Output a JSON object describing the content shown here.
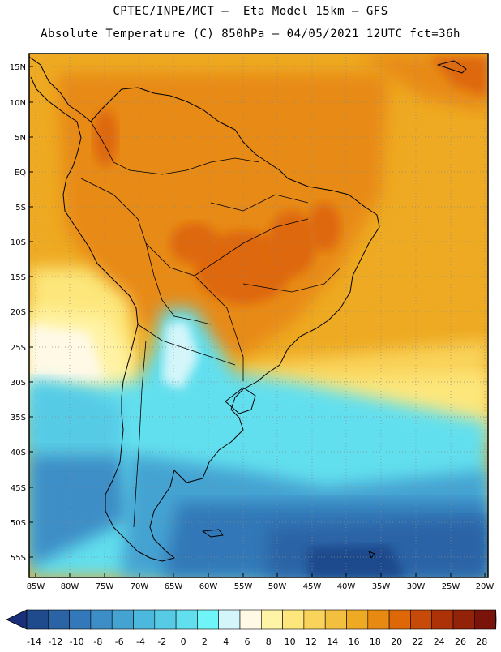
{
  "header": {
    "line1": "CPTEC/INPE/MCT –  Eta Model 15km – GFS",
    "line2": "Absolute Temperature (C) 850hPa – 04/05/2021 12UTC fct=36h"
  },
  "axes": {
    "lat_labels": [
      "15N",
      "10N",
      "5N",
      "EQ",
      "5S",
      "10S",
      "15S",
      "20S",
      "25S",
      "30S",
      "35S",
      "40S",
      "45S",
      "50S",
      "55S"
    ],
    "lon_labels": [
      "85W",
      "80W",
      "75W",
      "70W",
      "65W",
      "60W",
      "55W",
      "50W",
      "45W",
      "40W",
      "35W",
      "30W",
      "25W",
      "20W"
    ]
  },
  "colorbar": {
    "labels": [
      "-14",
      "-12",
      "-10",
      "-8",
      "-6",
      "-4",
      "-2",
      "0",
      "2",
      "4",
      "6",
      "8",
      "10",
      "12",
      "14",
      "16",
      "18",
      "20",
      "22",
      "24",
      "26",
      "28"
    ],
    "colors": [
      "#1f4a8c",
      "#2a63a6",
      "#3378b8",
      "#3d8ec6",
      "#45a3d2",
      "#4db8dd",
      "#57cbe6",
      "#62dfee",
      "#6ff5f7",
      "#d4f6fa",
      "#fff9e6",
      "#fff3a6",
      "#fde77c",
      "#f9d35a",
      "#f2bf3f",
      "#eeaa22",
      "#e88a12",
      "#de6808",
      "#c84a08",
      "#ae3208",
      "#922208",
      "#7a140a"
    ],
    "under_color": "#1a2f7a",
    "over_color": "#7a0a22"
  },
  "colors": {
    "frame": "#000000",
    "grid": "#8a8a8a",
    "coast": "#000000"
  }
}
